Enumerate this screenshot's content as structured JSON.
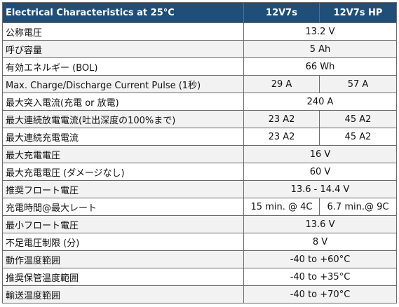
{
  "table": {
    "header": [
      "Electrical Characteristics at 25°C",
      "12V7s",
      "12V7s HP"
    ],
    "rows": [
      [
        "公称電圧",
        "13.2 V"
      ],
      [
        "呼び容量",
        "5 Ah"
      ],
      [
        "有効エネルギー (BOL)",
        "66 Wh"
      ],
      [
        "Max. Charge/Discharge Current Pulse (1秒)",
        "29 A",
        "57 A"
      ],
      [
        "最大突入電流(充電 or 放電)",
        "240 A"
      ],
      [
        "最大連続放電電流(吐出深度の100%まで)",
        "23 A2",
        "45 A2"
      ],
      [
        "最大連続充電電流",
        "23 A2",
        "45 A2"
      ],
      [
        "最大充電電圧",
        "16 V"
      ],
      [
        "最大充電電圧 (ダメージなし)",
        "60 V"
      ],
      [
        "推奨フロート電圧",
        "13.6 - 14.4 V"
      ],
      [
        "充電時間@最大レート",
        "15 min. @ 4C",
        "6.7 min.@ 9C"
      ],
      [
        "最小フロート電圧",
        "13.6 V"
      ],
      [
        "不足電圧制限 (分)",
        "8 V"
      ],
      [
        "動作温度範囲",
        "-40 to +60°C"
      ],
      [
        "推奨保管温度範囲",
        "-40 to +35°C"
      ],
      [
        "輸送温度範囲",
        "-40 to +70°C"
      ]
    ]
  }
}
